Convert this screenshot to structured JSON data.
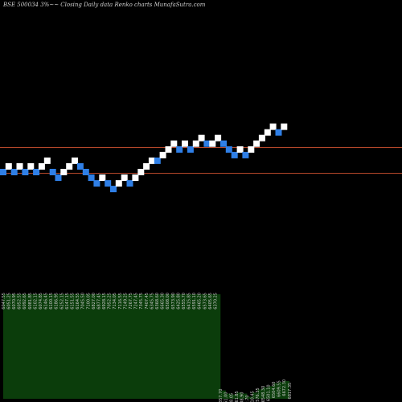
{
  "chart_data": {
    "type": "renko",
    "title": "BSE 500034  3%~~  Closing Daily data  Renko  charts MunafaSutra.com",
    "colors": {
      "background": "#000000",
      "up_brick": "#ffffff",
      "down_brick": "#2f7fe6",
      "level_line": "#b5472a",
      "volume_area": "#0b3d0b",
      "label_text": "#c8c8c8"
    },
    "levels": [
      6380,
      6140
    ],
    "bricks": [
      {
        "dir": "down",
        "level": 6140
      },
      {
        "dir": "up",
        "level": 6193
      },
      {
        "dir": "down",
        "level": 6140
      },
      {
        "dir": "up",
        "level": 6193
      },
      {
        "dir": "down",
        "level": 6140
      },
      {
        "dir": "up",
        "level": 6193
      },
      {
        "dir": "down",
        "level": 6140
      },
      {
        "dir": "up",
        "level": 6193
      },
      {
        "dir": "up",
        "level": 6247
      },
      {
        "dir": "down",
        "level": 6140
      },
      {
        "dir": "down",
        "level": 6087
      },
      {
        "dir": "up",
        "level": 6140
      },
      {
        "dir": "up",
        "level": 6193
      },
      {
        "dir": "up",
        "level": 6247
      },
      {
        "dir": "down",
        "level": 6193
      },
      {
        "dir": "down",
        "level": 6140
      },
      {
        "dir": "down",
        "level": 6087
      },
      {
        "dir": "down",
        "level": 6033
      },
      {
        "dir": "up",
        "level": 6087
      },
      {
        "dir": "down",
        "level": 6033
      },
      {
        "dir": "down",
        "level": 5980
      },
      {
        "dir": "up",
        "level": 6033
      },
      {
        "dir": "up",
        "level": 6087
      },
      {
        "dir": "down",
        "level": 6033
      },
      {
        "dir": "up",
        "level": 6087
      },
      {
        "dir": "up",
        "level": 6140
      },
      {
        "dir": "up",
        "level": 6193
      },
      {
        "dir": "up",
        "level": 6247
      },
      {
        "dir": "down",
        "level": 6247
      },
      {
        "dir": "up",
        "level": 6300
      },
      {
        "dir": "up",
        "level": 6353
      },
      {
        "dir": "up",
        "level": 6407
      },
      {
        "dir": "down",
        "level": 6353
      },
      {
        "dir": "up",
        "level": 6407
      },
      {
        "dir": "down",
        "level": 6353
      },
      {
        "dir": "up",
        "level": 6407
      },
      {
        "dir": "up",
        "level": 6460
      },
      {
        "dir": "down",
        "level": 6407
      },
      {
        "dir": "up",
        "level": 6407
      },
      {
        "dir": "up",
        "level": 6460
      },
      {
        "dir": "down",
        "level": 6407
      },
      {
        "dir": "down",
        "level": 6353
      },
      {
        "dir": "down",
        "level": 6300
      },
      {
        "dir": "up",
        "level": 6353
      },
      {
        "dir": "down",
        "level": 6300
      },
      {
        "dir": "up",
        "level": 6353
      },
      {
        "dir": "up",
        "level": 6407
      },
      {
        "dir": "up",
        "level": 6460
      },
      {
        "dir": "up",
        "level": 6513
      },
      {
        "dir": "up",
        "level": 6567
      },
      {
        "dir": "down",
        "level": 6513
      },
      {
        "dir": "up",
        "level": 6567
      }
    ],
    "volume": [
      {
        "x_label": "6047.55",
        "vol": 100
      },
      {
        "x_label": "6051.25",
        "vol": 100
      },
      {
        "x_label": "6070.95",
        "vol": 100
      },
      {
        "x_label": "6052.55",
        "vol": 100
      },
      {
        "x_label": "6092.65",
        "vol": 100
      },
      {
        "x_label": "6081.85",
        "vol": 100
      },
      {
        "x_label": "6102.15",
        "vol": 100
      },
      {
        "x_label": "6074.85",
        "vol": 100
      },
      {
        "x_label": "6146.45",
        "vol": 100
      },
      {
        "x_label": "6100.15",
        "vol": 100
      },
      {
        "x_label": "6186.95",
        "vol": 100
      },
      {
        "x_label": "6252.15",
        "vol": 100
      },
      {
        "x_label": "6147.15",
        "vol": 100
      },
      {
        "x_label": "6151.55",
        "vol": 100
      },
      {
        "x_label": "6164.55",
        "vol": 100
      },
      {
        "x_label": "7045.50",
        "vol": 100
      },
      {
        "x_label": "7100.05",
        "vol": 100
      },
      {
        "x_label": "6827.00",
        "vol": 100
      },
      {
        "x_label": "6877.45",
        "vol": 100
      },
      {
        "x_label": "6928.15",
        "vol": 100
      },
      {
        "x_label": "7052.25",
        "vol": 100
      },
      {
        "x_label": "7134.05",
        "vol": 100
      },
      {
        "x_label": "7116.55",
        "vol": 100
      },
      {
        "x_label": "7149.25",
        "vol": 100
      },
      {
        "x_label": "7267.75",
        "vol": 100
      },
      {
        "x_label": "7247.45",
        "vol": 100
      },
      {
        "x_label": "7345.75",
        "vol": 100
      },
      {
        "x_label": "7407.45",
        "vol": 100
      },
      {
        "x_label": "6345.75",
        "vol": 100
      },
      {
        "x_label": "6368.60",
        "vol": 100
      },
      {
        "x_label": "6665.30",
        "vol": 100
      },
      {
        "x_label": "6508.00",
        "vol": 100
      },
      {
        "x_label": "6573.90",
        "vol": 100
      },
      {
        "x_label": "6425.80",
        "vol": 100
      },
      {
        "x_label": "6555.70",
        "vol": 100
      },
      {
        "x_label": "6415.85",
        "vol": 100
      },
      {
        "x_label": "6591.10",
        "vol": 100
      },
      {
        "x_label": "6465.20",
        "vol": 100
      },
      {
        "x_label": "6573.65",
        "vol": 100
      },
      {
        "x_label": "6405.65",
        "vol": 100
      },
      {
        "x_label": "6370.25",
        "vol": 100
      },
      {
        "x_label": "6357.70",
        "vol": 8
      },
      {
        "x_label": "6361.00",
        "vol": 5
      },
      {
        "x_label": "6418.05",
        "vol": 4
      },
      {
        "x_label": "6361.85",
        "vol": 6
      },
      {
        "x_label": "6438.90",
        "vol": 5
      },
      {
        "x_label": "6532.70",
        "vol": 2
      },
      {
        "x_label": "6510.45",
        "vol": 6
      },
      {
        "x_label": "6576.35",
        "vol": 9
      },
      {
        "x_label": "6548.30",
        "vol": 11
      },
      {
        "x_label": "6501.10",
        "vol": 12
      },
      {
        "x_label": "6504.60",
        "vol": 15
      },
      {
        "x_label": "6609.55",
        "vol": 16
      },
      {
        "x_label": "6672.30",
        "vol": 17
      },
      {
        "x_label": "6817.35",
        "vol": 14
      }
    ]
  }
}
